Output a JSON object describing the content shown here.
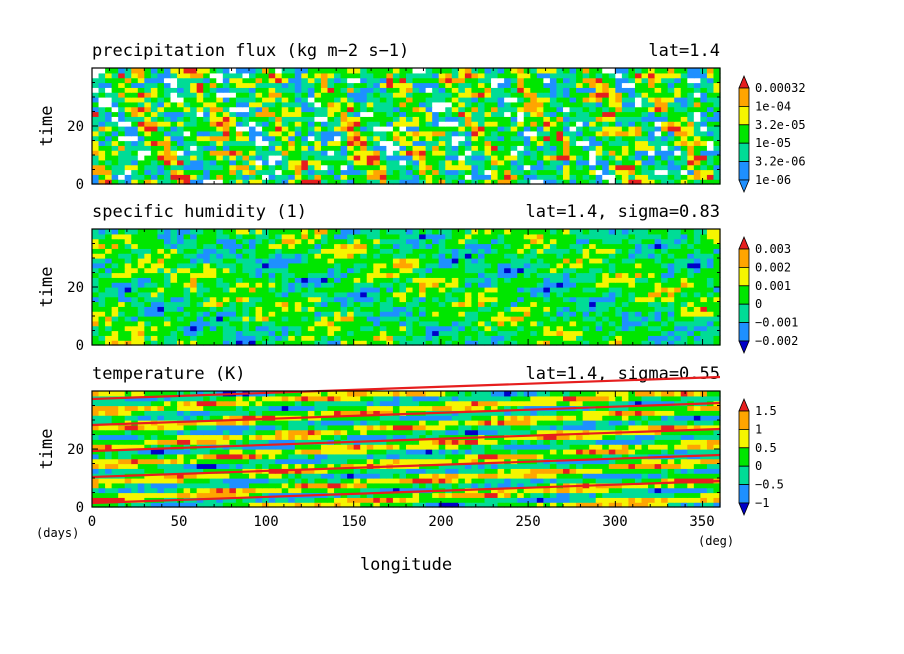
{
  "chart_data": [
    {
      "type": "heatmap",
      "title": "precipitation flux (kg m−2 s−1)",
      "subtitle": "lat=1.4",
      "ylabel": "time",
      "xlim": [
        0,
        360
      ],
      "ylim": [
        0,
        40
      ],
      "y_ticks": [
        "0",
        "20"
      ],
      "colorbar_labels": [
        "0.00032",
        "1e-04",
        "3.2e-05",
        "1e-05",
        "3.2e-06",
        "1e-06"
      ],
      "colors": [
        "#ffffff",
        "#1e90ff",
        "#00dc96",
        "#00e600",
        "#f5f500",
        "#ffa500",
        "#e61e1e"
      ]
    },
    {
      "type": "heatmap",
      "title": "specific humidity (1)",
      "subtitle": "lat=1.4, sigma=0.83",
      "ylabel": "time",
      "xlim": [
        0,
        360
      ],
      "ylim": [
        0,
        40
      ],
      "y_ticks": [
        "0",
        "20"
      ],
      "colorbar_labels": [
        "0.003",
        "0.002",
        "0.001",
        "0",
        "−0.001",
        "−0.002"
      ],
      "colors": [
        "#0000c8",
        "#1e90ff",
        "#00dc96",
        "#00e600",
        "#f5f500",
        "#ffa500",
        "#e61e1e"
      ]
    },
    {
      "type": "heatmap",
      "title": "temperature (K)",
      "subtitle": "lat=1.4, sigma=0.55",
      "ylabel": "time",
      "xlabel": "longitude",
      "xlim": [
        0,
        360
      ],
      "ylim": [
        0,
        40
      ],
      "x_ticks": [
        "0",
        "50",
        "100",
        "150",
        "200",
        "250",
        "300",
        "350"
      ],
      "y_ticks": [
        "0",
        "20"
      ],
      "x_unit": "(deg)",
      "y_unit": "(days)",
      "colorbar_labels": [
        "1.5",
        "1",
        "0.5",
        "0",
        "−0.5",
        "−1"
      ],
      "colors": [
        "#0000c8",
        "#1e90ff",
        "#00dc96",
        "#00e600",
        "#f5f500",
        "#ffa500",
        "#e61e1e"
      ]
    }
  ]
}
